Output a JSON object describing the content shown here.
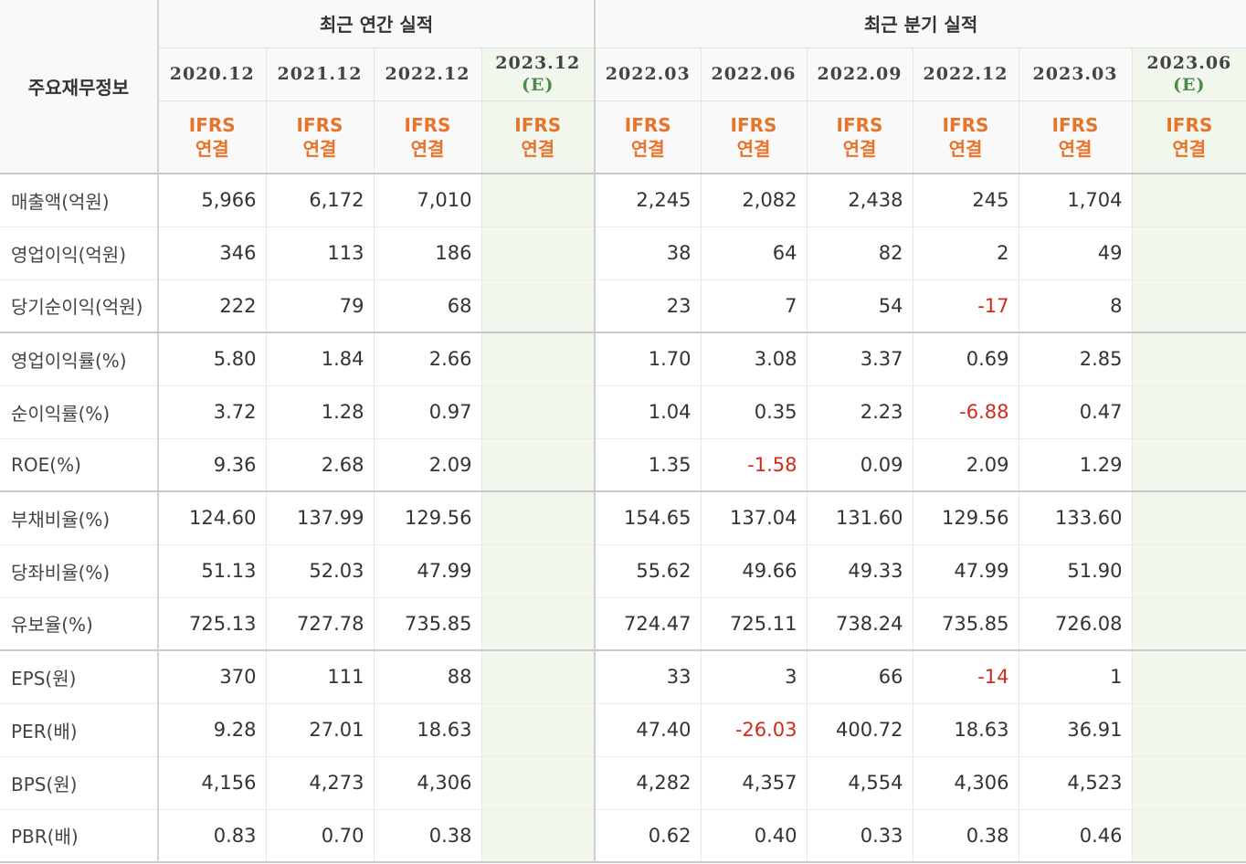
{
  "header": {
    "row_label": "주요재무정보",
    "annual_title": "최근 연간 실적",
    "quarterly_title": "최근 분기 실적",
    "annual_periods": [
      {
        "date": "2020.12",
        "estimate": "",
        "ifrs_top": "IFRS",
        "ifrs_bottom": "연결"
      },
      {
        "date": "2021.12",
        "estimate": "",
        "ifrs_top": "IFRS",
        "ifrs_bottom": "연결"
      },
      {
        "date": "2022.12",
        "estimate": "",
        "ifrs_top": "IFRS",
        "ifrs_bottom": "연결"
      },
      {
        "date": "2023.12",
        "estimate": "(E)",
        "ifrs_top": "IFRS",
        "ifrs_bottom": "연결"
      }
    ],
    "quarterly_periods": [
      {
        "date": "2022.03",
        "estimate": "",
        "ifrs_top": "IFRS",
        "ifrs_bottom": "연결"
      },
      {
        "date": "2022.06",
        "estimate": "",
        "ifrs_top": "IFRS",
        "ifrs_bottom": "연결"
      },
      {
        "date": "2022.09",
        "estimate": "",
        "ifrs_top": "IFRS",
        "ifrs_bottom": "연결"
      },
      {
        "date": "2022.12",
        "estimate": "",
        "ifrs_top": "IFRS",
        "ifrs_bottom": "연결"
      },
      {
        "date": "2023.03",
        "estimate": "",
        "ifrs_top": "IFRS",
        "ifrs_bottom": "연결"
      },
      {
        "date": "2023.06",
        "estimate": "(E)",
        "ifrs_top": "IFRS",
        "ifrs_bottom": "연결"
      }
    ]
  },
  "rows": [
    {
      "label": "매출액(억원)",
      "annual": [
        "5,966",
        "6,172",
        "7,010",
        ""
      ],
      "quarterly": [
        "2,245",
        "2,082",
        "2,438",
        "245",
        "1,704",
        ""
      ]
    },
    {
      "label": "영업이익(억원)",
      "annual": [
        "346",
        "113",
        "186",
        ""
      ],
      "quarterly": [
        "38",
        "64",
        "82",
        "2",
        "49",
        ""
      ]
    },
    {
      "label": "당기순이익(억원)",
      "annual": [
        "222",
        "79",
        "68",
        ""
      ],
      "quarterly": [
        "23",
        "7",
        "54",
        "-17",
        "8",
        ""
      ]
    },
    {
      "label": "영업이익률(%)",
      "annual": [
        "5.80",
        "1.84",
        "2.66",
        ""
      ],
      "quarterly": [
        "1.70",
        "3.08",
        "3.37",
        "0.69",
        "2.85",
        ""
      ]
    },
    {
      "label": "순이익률(%)",
      "annual": [
        "3.72",
        "1.28",
        "0.97",
        ""
      ],
      "quarterly": [
        "1.04",
        "0.35",
        "2.23",
        "-6.88",
        "0.47",
        ""
      ]
    },
    {
      "label": "ROE(%)",
      "annual": [
        "9.36",
        "2.68",
        "2.09",
        ""
      ],
      "quarterly": [
        "1.35",
        "-1.58",
        "0.09",
        "2.09",
        "1.29",
        ""
      ]
    },
    {
      "label": "부채비율(%)",
      "annual": [
        "124.60",
        "137.99",
        "129.56",
        ""
      ],
      "quarterly": [
        "154.65",
        "137.04",
        "131.60",
        "129.56",
        "133.60",
        ""
      ]
    },
    {
      "label": "당좌비율(%)",
      "annual": [
        "51.13",
        "52.03",
        "47.99",
        ""
      ],
      "quarterly": [
        "55.62",
        "49.66",
        "49.33",
        "47.99",
        "51.90",
        ""
      ]
    },
    {
      "label": "유보율(%)",
      "annual": [
        "725.13",
        "727.78",
        "735.85",
        ""
      ],
      "quarterly": [
        "724.47",
        "725.11",
        "738.24",
        "735.85",
        "726.08",
        ""
      ]
    },
    {
      "label": "EPS(원)",
      "annual": [
        "370",
        "111",
        "88",
        ""
      ],
      "quarterly": [
        "33",
        "3",
        "66",
        "-14",
        "1",
        ""
      ]
    },
    {
      "label": "PER(배)",
      "annual": [
        "9.28",
        "27.01",
        "18.63",
        ""
      ],
      "quarterly": [
        "47.40",
        "-26.03",
        "400.72",
        "18.63",
        "36.91",
        ""
      ]
    },
    {
      "label": "BPS(원)",
      "annual": [
        "4,156",
        "4,273",
        "4,306",
        ""
      ],
      "quarterly": [
        "4,282",
        "4,357",
        "4,554",
        "4,306",
        "4,523",
        ""
      ]
    },
    {
      "label": "PBR(배)",
      "annual": [
        "0.83",
        "0.70",
        "0.38",
        ""
      ],
      "quarterly": [
        "0.62",
        "0.40",
        "0.33",
        "0.38",
        "0.46",
        ""
      ]
    }
  ],
  "colors": {
    "negative": "#d12a1a",
    "ifrs": "#e8732a",
    "estimate_bg": "#f2f7ee",
    "estimate_text": "#4a8a4a"
  }
}
